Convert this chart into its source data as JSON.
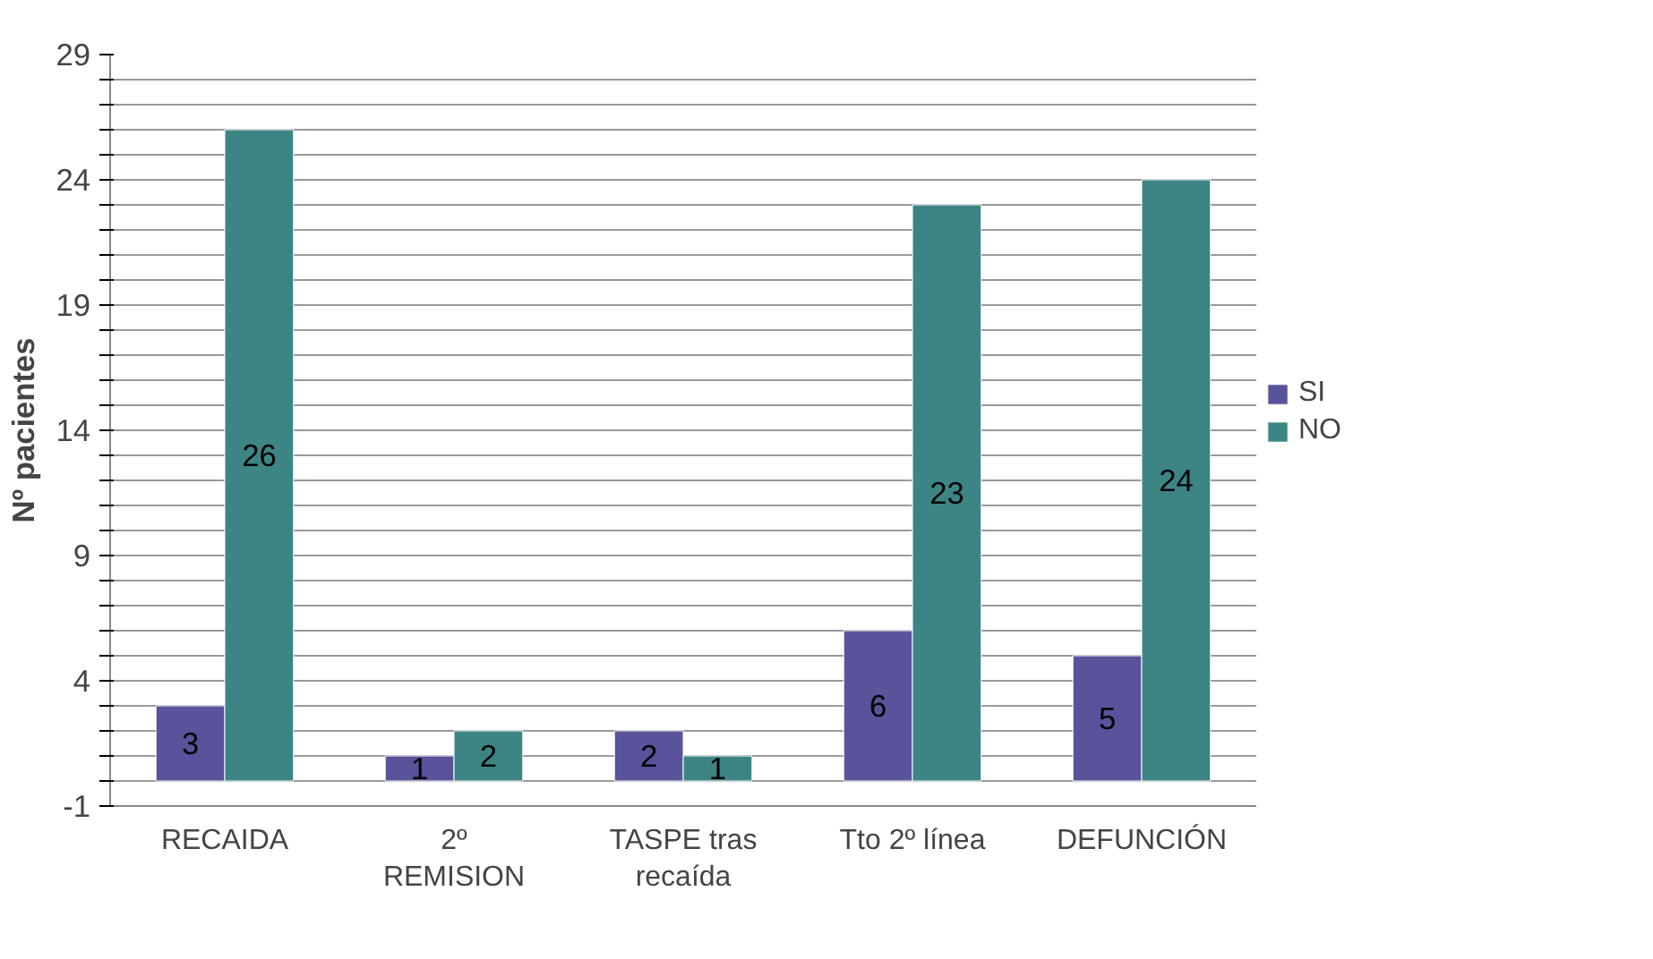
{
  "chart_data": {
    "type": "bar",
    "ylabel": "Nº pacientes",
    "categories": [
      "RECAIDA",
      "2º\nREMISION",
      "TASPE tras\nrecaída",
      "Tto 2º línea",
      "DEFUNCIÓN"
    ],
    "series": [
      {
        "name": "SI",
        "color": "#58539a",
        "values": [
          3,
          1,
          2,
          6,
          5
        ]
      },
      {
        "name": "NO",
        "color": "#3d8585",
        "values": [
          26,
          2,
          1,
          23,
          24
        ]
      }
    ],
    "ylim": [
      -1,
      29
    ],
    "yticks": [
      -1,
      {
        "value": 0,
        "label": null
      },
      {
        "value": 1,
        "label": null
      },
      {
        "value": 2,
        "label": null
      },
      {
        "value": 3,
        "label": null
      },
      4,
      {
        "value": 5,
        "label": null
      },
      {
        "value": 6,
        "label": null
      },
      {
        "value": 7,
        "label": null
      },
      {
        "value": 8,
        "label": null
      },
      9,
      {
        "value": 10,
        "label": null
      },
      {
        "value": 11,
        "label": null
      },
      {
        "value": 12,
        "label": null
      },
      {
        "value": 13,
        "label": null
      },
      14,
      {
        "value": 15,
        "label": null
      },
      {
        "value": 16,
        "label": null
      },
      {
        "value": 17,
        "label": null
      },
      {
        "value": 18,
        "label": null
      },
      19,
      {
        "value": 20,
        "label": null
      },
      {
        "value": 21,
        "label": null
      },
      {
        "value": 22,
        "label": null
      },
      {
        "value": 23,
        "label": null
      },
      24,
      {
        "value": 25,
        "label": null
      },
      {
        "value": 26,
        "label": null
      },
      {
        "value": 27,
        "label": null
      },
      {
        "value": 28,
        "label": null
      },
      29
    ],
    "grid": "y",
    "legend": "right",
    "data_labels": true
  }
}
